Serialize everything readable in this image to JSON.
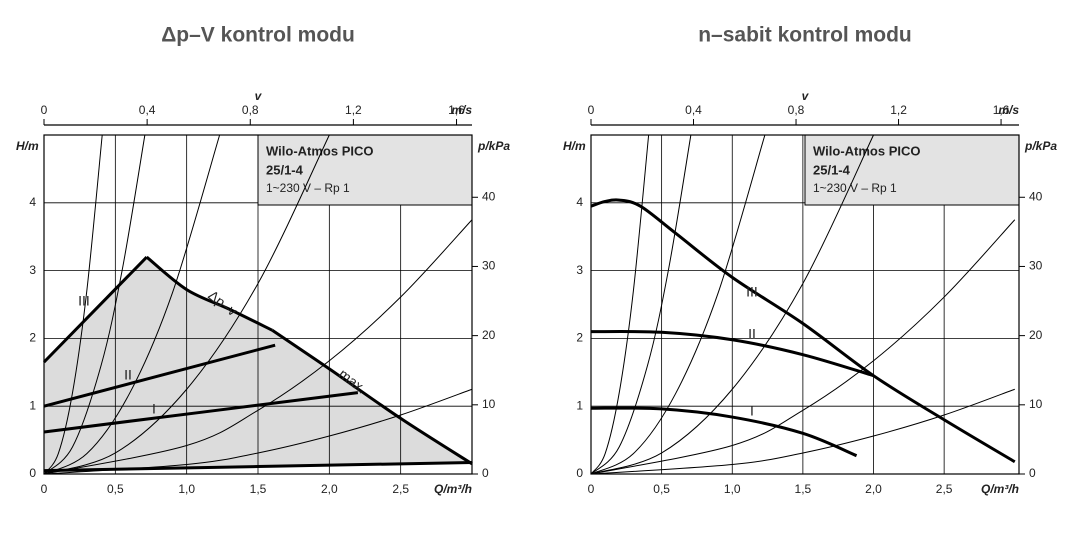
{
  "chart_data": [
    {
      "type": "line",
      "title": "Δp–V kontrol modu",
      "info": [
        "Wilo-Atmos PICO",
        "25/1-4",
        "1~230 V – Rp 1"
      ],
      "box_color": "#e3e3e3",
      "area_color": "#dcdcdc",
      "x_label": "Q/m³/h",
      "y_label": "H/m",
      "y2_label": "p/kPa",
      "x2_label": "v",
      "x2_unit": "m/s",
      "xlim": [
        0,
        3.0
      ],
      "xticks": [
        0,
        {
          "value": 0.5,
          "label": "0,5"
        },
        {
          "value": 1.0,
          "label": "1,0"
        },
        {
          "value": 1.5,
          "label": "1,5"
        },
        {
          "value": 2.0,
          "label": "2,0"
        },
        {
          "value": 2.5,
          "label": "2,5"
        }
      ],
      "ylim": [
        0,
        5
      ],
      "yticks": [
        0,
        1,
        2,
        3,
        4
      ],
      "y2lim": [
        0,
        49
      ],
      "y2ticks": [
        0,
        10,
        20,
        30,
        40
      ],
      "x2lim": [
        0,
        1.66
      ],
      "x2ticks": [
        0,
        {
          "value": 0.4,
          "label": "0,4"
        },
        {
          "value": 0.8,
          "label": "0,8"
        },
        {
          "value": 1.2,
          "label": "1,2"
        },
        {
          "value": 1.6,
          "label": "1,6"
        }
      ],
      "grid": true,
      "series": [
        {
          "name": "III",
          "color": "#000000",
          "style": "thick",
          "x": [
            0,
            0.72
          ],
          "values": [
            1.65,
            3.2
          ]
        },
        {
          "name": "Δp–v",
          "color": "#000000",
          "style": "thick",
          "x": [
            0.72,
            1.0,
            1.3,
            1.6
          ],
          "values": [
            3.2,
            2.72,
            2.43,
            2.12
          ]
        },
        {
          "name": "max.",
          "color": "#000000",
          "style": "thick",
          "x": [
            1.6,
            2.0,
            2.5,
            3.0
          ],
          "values": [
            2.12,
            1.55,
            0.82,
            0.15
          ]
        },
        {
          "name": "II",
          "color": "#000000",
          "style": "thick",
          "x": [
            0,
            1.62
          ],
          "values": [
            1.0,
            1.9
          ]
        },
        {
          "name": "I",
          "color": "#000000",
          "style": "thick",
          "x": [
            0,
            2.2
          ],
          "values": [
            0.62,
            1.2
          ]
        },
        {
          "color": "#000000",
          "style": "thick",
          "x": [
            0,
            3.0
          ],
          "values": [
            0.05,
            0.17
          ]
        },
        {
          "color": "#000000",
          "style": "thin",
          "x": [
            0,
            0.1,
            0.2,
            0.3,
            0.408
          ],
          "values": [
            0,
            0.3,
            1.2,
            2.7,
            5.0
          ]
        },
        {
          "color": "#000000",
          "style": "thin",
          "x": [
            0,
            0.2,
            0.4,
            0.55,
            0.707
          ],
          "values": [
            0,
            0.4,
            1.6,
            3.03,
            5.0
          ]
        },
        {
          "color": "#000000",
          "style": "thin",
          "x": [
            0,
            0.3,
            0.6,
            0.9,
            1.231
          ],
          "values": [
            0,
            0.3,
            1.19,
            2.67,
            5.0
          ]
        },
        {
          "color": "#000000",
          "style": "thin",
          "x": [
            0,
            0.5,
            1.0,
            1.5,
            2.0
          ],
          "values": [
            0,
            0.31,
            1.25,
            2.81,
            5.0
          ]
        },
        {
          "color": "#000000",
          "style": "thin",
          "x": [
            0,
            1.0,
            1.5,
            2.0,
            2.5,
            3.0
          ],
          "values": [
            0,
            0.42,
            0.94,
            1.67,
            2.61,
            3.75
          ]
        },
        {
          "color": "#000000",
          "style": "thin",
          "x": [
            0,
            1.0,
            1.5,
            2.0,
            2.5,
            3.0
          ],
          "values": [
            0,
            0.14,
            0.31,
            0.56,
            0.87,
            1.25
          ]
        }
      ]
    },
    {
      "type": "line",
      "title": "n–sabit kontrol modu",
      "info": [
        "Wilo-Atmos PICO",
        "25/1-4",
        "1~230 V – Rp 1"
      ],
      "box_color": "#e3e3e3",
      "x_label": "Q/m³/h",
      "y_label": "H/m",
      "y2_label": "p/kPa",
      "x2_label": "v",
      "x2_unit": "m/s",
      "xlim": [
        0,
        3.03
      ],
      "xticks": [
        0,
        {
          "value": 0.5,
          "label": "0,5"
        },
        {
          "value": 1.0,
          "label": "1,0"
        },
        {
          "value": 1.5,
          "label": "1,5"
        },
        {
          "value": 2.0,
          "label": "2,0"
        },
        {
          "value": 2.5,
          "label": "2,5"
        }
      ],
      "ylim": [
        0,
        5
      ],
      "yticks": [
        0,
        1,
        2,
        3,
        4
      ],
      "y2lim": [
        0,
        49
      ],
      "y2ticks": [
        0,
        10,
        20,
        30,
        40
      ],
      "x2lim": [
        0,
        1.67
      ],
      "x2ticks": [
        0,
        {
          "value": 0.4,
          "label": "0,4"
        },
        {
          "value": 0.8,
          "label": "0,8"
        },
        {
          "value": 1.2,
          "label": "1,2"
        },
        {
          "value": 1.6,
          "label": "1,6"
        }
      ],
      "grid": true,
      "series": [
        {
          "name": "III",
          "color": "#000000",
          "style": "thick",
          "x": [
            0,
            0.1,
            0.2,
            0.35,
            0.6,
            1.0,
            1.5,
            2.0,
            2.5,
            3.0
          ],
          "values": [
            3.95,
            4.02,
            4.04,
            3.95,
            3.55,
            2.9,
            2.22,
            1.45,
            0.8,
            0.18
          ]
        },
        {
          "name": "II",
          "color": "#000000",
          "style": "thick",
          "x": [
            0,
            0.5,
            1.0,
            1.5,
            2.0
          ],
          "values": [
            2.1,
            2.09,
            1.98,
            1.76,
            1.45
          ]
        },
        {
          "name": "I",
          "color": "#000000",
          "style": "thick",
          "x": [
            0,
            0.5,
            1.0,
            1.5,
            1.88
          ],
          "values": [
            0.97,
            0.96,
            0.84,
            0.6,
            0.27
          ]
        },
        {
          "color": "#000000",
          "style": "thin",
          "x": [
            0,
            0.1,
            0.2,
            0.3,
            0.408
          ],
          "values": [
            0,
            0.3,
            1.2,
            2.7,
            5.0
          ]
        },
        {
          "color": "#000000",
          "style": "thin",
          "x": [
            0,
            0.2,
            0.4,
            0.55,
            0.707
          ],
          "values": [
            0,
            0.4,
            1.6,
            3.03,
            5.0
          ]
        },
        {
          "color": "#000000",
          "style": "thin",
          "x": [
            0,
            0.3,
            0.6,
            0.9,
            1.231
          ],
          "values": [
            0,
            0.3,
            1.19,
            2.67,
            5.0
          ]
        },
        {
          "color": "#000000",
          "style": "thin",
          "x": [
            0,
            0.5,
            1.0,
            1.5,
            2.0
          ],
          "values": [
            0,
            0.31,
            1.25,
            2.81,
            5.0
          ]
        },
        {
          "color": "#000000",
          "style": "thin",
          "x": [
            0,
            1.0,
            1.5,
            2.0,
            2.5,
            3.0
          ],
          "values": [
            0,
            0.42,
            0.94,
            1.67,
            2.61,
            3.75
          ]
        },
        {
          "color": "#000000",
          "style": "thin",
          "x": [
            0,
            1.0,
            1.5,
            2.0,
            2.5,
            3.0
          ],
          "values": [
            0,
            0.14,
            0.31,
            0.56,
            0.87,
            1.25
          ]
        }
      ]
    }
  ]
}
